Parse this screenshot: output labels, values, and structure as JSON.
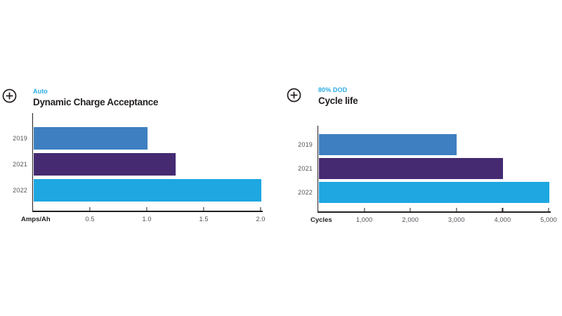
{
  "colors": {
    "accent_cyan": "#29abe2",
    "bar_2019": "#3e7fc1",
    "bar_2021": "#452a71",
    "bar_2022": "#1ea7e1",
    "axis": "#231f20",
    "label_gray": "#55565a"
  },
  "icons": {
    "expand_icon": "circle-plus"
  },
  "chart_data": [
    {
      "type": "bar",
      "orientation": "horizontal",
      "subtitle": "Auto",
      "title": "Dynamic Charge Acceptance",
      "xlabel": "Amps/Ah",
      "categories": [
        "2019",
        "2021",
        "2022"
      ],
      "values": [
        1.0,
        1.25,
        2.0
      ],
      "bar_colors": [
        "#3e7fc1",
        "#452a71",
        "#1ea7e1"
      ],
      "xlim": [
        0,
        2.0
      ],
      "xticks": [
        0.5,
        1.0,
        1.5,
        2.0
      ],
      "xtick_labels": [
        "0.5",
        "1.0",
        "1.5",
        "2.0"
      ],
      "grid": false,
      "legend": "none"
    },
    {
      "type": "bar",
      "orientation": "horizontal",
      "subtitle": "80% DOD",
      "title": "Cycle life",
      "xlabel": "Cycles",
      "categories": [
        "2019",
        "2021",
        "2022"
      ],
      "values": [
        3000,
        4000,
        5000
      ],
      "bar_colors": [
        "#3e7fc1",
        "#452a71",
        "#1ea7e1"
      ],
      "xlim": [
        0,
        5000
      ],
      "xticks": [
        1000,
        2000,
        3000,
        4000,
        5000
      ],
      "xtick_labels": [
        "1,000",
        "2,000",
        "3,000",
        "4,000",
        "5,000"
      ],
      "grid": false,
      "legend": "none"
    }
  ]
}
